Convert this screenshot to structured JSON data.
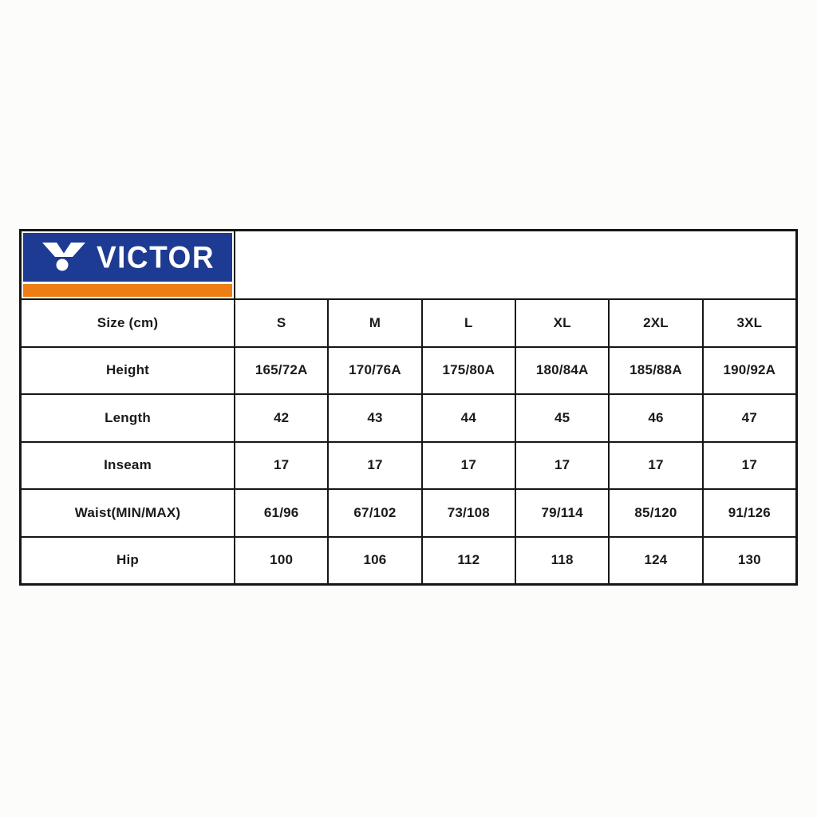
{
  "logo": {
    "brand": "VICTOR",
    "bg_color": "#1d3b92",
    "stripe_color": "#ee7d15",
    "text_color": "#ffffff"
  },
  "table": {
    "border_color": "#161616",
    "header": {
      "label": "Size (cm)",
      "sizes": [
        "S",
        "M",
        "L",
        "XL",
        "2XL",
        "3XL"
      ]
    },
    "rows": [
      {
        "label": "Height",
        "values": [
          "165/72A",
          "170/76A",
          "175/80A",
          "180/84A",
          "185/88A",
          "190/92A"
        ]
      },
      {
        "label": "Length",
        "values": [
          "42",
          "43",
          "44",
          "45",
          "46",
          "47"
        ]
      },
      {
        "label": "Inseam",
        "values": [
          "17",
          "17",
          "17",
          "17",
          "17",
          "17"
        ]
      },
      {
        "label": "Waist(MIN/MAX)",
        "values": [
          "61/96",
          "67/102",
          "73/108",
          "79/114",
          "85/120",
          "91/126"
        ]
      },
      {
        "label": "Hip",
        "values": [
          "100",
          "106",
          "112",
          "118",
          "124",
          "130"
        ]
      }
    ]
  }
}
